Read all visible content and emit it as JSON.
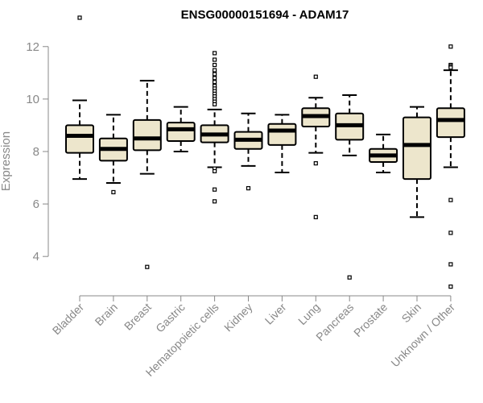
{
  "chart_data": {
    "type": "boxplot",
    "title": "ENSG00000151694 - ADAM17",
    "ylabel": "Expression",
    "xlabel": "",
    "ylim": [
      2.5,
      12.7
    ],
    "yticks": [
      4,
      6,
      8,
      10,
      12
    ],
    "box_fill": "#ede6cc",
    "box_stroke": "#000000",
    "categories": [
      "Bladder",
      "Brain",
      "Breast",
      "Gastric",
      "Hematopoietic cells",
      "Kidney",
      "Liver",
      "Lung",
      "Pancreas",
      "Prostate",
      "Skin",
      "Unknown / Other"
    ],
    "boxes": [
      {
        "category": "Bladder",
        "whisker_low": 6.95,
        "q1": 7.95,
        "median": 8.6,
        "q3": 9.0,
        "whisker_high": 9.95,
        "outliers": [
          13.1
        ]
      },
      {
        "category": "Brain",
        "whisker_low": 6.8,
        "q1": 7.65,
        "median": 8.1,
        "q3": 8.5,
        "whisker_high": 9.4,
        "outliers": [
          6.45
        ]
      },
      {
        "category": "Breast",
        "whisker_low": 7.15,
        "q1": 8.05,
        "median": 8.5,
        "q3": 9.2,
        "whisker_high": 10.7,
        "outliers": [
          3.6
        ]
      },
      {
        "category": "Gastric",
        "whisker_low": 8.0,
        "q1": 8.4,
        "median": 8.85,
        "q3": 9.1,
        "whisker_high": 9.7,
        "outliers": []
      },
      {
        "category": "Hematopoietic cells",
        "whisker_low": 7.4,
        "q1": 8.35,
        "median": 8.65,
        "q3": 9.0,
        "whisker_high": 9.6,
        "outliers": [
          11.75,
          11.5,
          11.3,
          11.1,
          10.95,
          10.8,
          10.65,
          10.5,
          10.4,
          10.3,
          10.2,
          10.1,
          10.0,
          9.9,
          9.8,
          7.35,
          7.25,
          6.55,
          6.1
        ]
      },
      {
        "category": "Kidney",
        "whisker_low": 7.45,
        "q1": 8.1,
        "median": 8.45,
        "q3": 8.75,
        "whisker_high": 9.45,
        "outliers": [
          6.6
        ]
      },
      {
        "category": "Liver",
        "whisker_low": 7.2,
        "q1": 8.25,
        "median": 8.8,
        "q3": 9.05,
        "whisker_high": 9.4,
        "outliers": []
      },
      {
        "category": "Lung",
        "whisker_low": 7.95,
        "q1": 8.95,
        "median": 9.35,
        "q3": 9.65,
        "whisker_high": 10.05,
        "outliers": [
          10.85,
          7.55,
          5.5
        ]
      },
      {
        "category": "Pancreas",
        "whisker_low": 7.85,
        "q1": 8.45,
        "median": 9.0,
        "q3": 9.45,
        "whisker_high": 10.15,
        "outliers": [
          3.2
        ]
      },
      {
        "category": "Prostate",
        "whisker_low": 7.2,
        "q1": 7.6,
        "median": 7.85,
        "q3": 8.1,
        "whisker_high": 8.65,
        "outliers": []
      },
      {
        "category": "Skin",
        "whisker_low": 5.5,
        "q1": 6.95,
        "median": 8.25,
        "q3": 9.3,
        "whisker_high": 9.7,
        "outliers": []
      },
      {
        "category": "Unknown / Other",
        "whisker_low": 7.4,
        "q1": 8.55,
        "median": 9.2,
        "q3": 9.65,
        "whisker_high": 11.1,
        "outliers": [
          12.0,
          11.3,
          11.25,
          11.2,
          6.15,
          4.9,
          3.7,
          2.85
        ]
      }
    ]
  }
}
